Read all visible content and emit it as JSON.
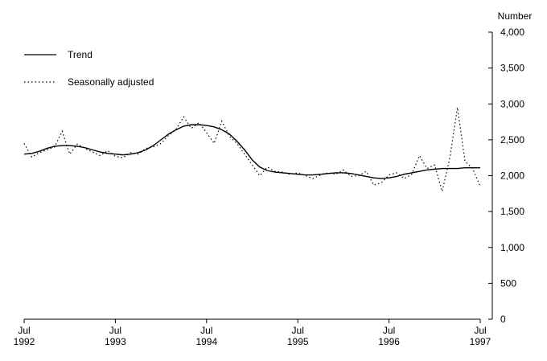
{
  "chart_data": {
    "type": "line",
    "y_axis_label": "Number",
    "x": [
      1992.5,
      1992.5833,
      1992.6667,
      1992.75,
      1992.8333,
      1992.9167,
      1993,
      1993.0833,
      1993.1667,
      1993.25,
      1993.3333,
      1993.4167,
      1993.5,
      1993.5833,
      1993.6667,
      1993.75,
      1993.8333,
      1993.9167,
      1994,
      1994.0833,
      1994.1667,
      1994.25,
      1994.3333,
      1994.4167,
      1994.5,
      1994.5833,
      1994.6667,
      1994.75,
      1994.8333,
      1994.9167,
      1995,
      1995.0833,
      1995.1667,
      1995.25,
      1995.3333,
      1995.4167,
      1995.5,
      1995.5833,
      1995.6667,
      1995.75,
      1995.8333,
      1995.9167,
      1996,
      1996.0833,
      1996.1667,
      1996.25,
      1996.3333,
      1996.4167,
      1996.5,
      1996.5833,
      1996.6667,
      1996.75,
      1996.8333,
      1996.9167,
      1997,
      1997.0833,
      1997.1667,
      1997.25,
      1997.3333,
      1997.4167,
      1997.5
    ],
    "series": [
      {
        "name": "Trend",
        "color": "#000000",
        "dash": "none",
        "values": [
          2300,
          2310,
          2340,
          2380,
          2410,
          2420,
          2420,
          2410,
          2390,
          2360,
          2330,
          2310,
          2300,
          2290,
          2300,
          2320,
          2360,
          2420,
          2500,
          2580,
          2640,
          2690,
          2710,
          2710,
          2700,
          2680,
          2640,
          2580,
          2480,
          2360,
          2220,
          2120,
          2070,
          2050,
          2040,
          2030,
          2020,
          2010,
          2010,
          2020,
          2030,
          2040,
          2040,
          2030,
          2010,
          1990,
          1970,
          1960,
          1970,
          1990,
          2020,
          2040,
          2060,
          2080,
          2090,
          2100,
          2100,
          2100,
          2110,
          2110,
          2110
        ]
      },
      {
        "name": "Seasonally adjusted",
        "color": "#000000",
        "dash": "1.5 3",
        "values": [
          2450,
          2260,
          2320,
          2360,
          2400,
          2620,
          2300,
          2440,
          2380,
          2330,
          2280,
          2350,
          2270,
          2250,
          2320,
          2300,
          2380,
          2400,
          2450,
          2560,
          2650,
          2820,
          2660,
          2740,
          2600,
          2450,
          2760,
          2550,
          2450,
          2300,
          2150,
          2000,
          2120,
          2060,
          2050,
          2020,
          2040,
          2000,
          1960,
          2010,
          2040,
          2020,
          2080,
          1990,
          2000,
          2060,
          1870,
          1900,
          2010,
          2040,
          1960,
          2020,
          2280,
          2100,
          2150,
          1780,
          2250,
          2950,
          2200,
          2100,
          1850
        ]
      }
    ],
    "xlim": [
      1992.5,
      1997.5
    ],
    "xticks": [
      {
        "value": 1992.5,
        "label": "Jul 1992"
      },
      {
        "value": 1993.5,
        "label": "Jul 1993"
      },
      {
        "value": 1994.5,
        "label": "Jul 1994"
      },
      {
        "value": 1995.5,
        "label": "Jul 1995"
      },
      {
        "value": 1996.5,
        "label": "Jul 1996"
      },
      {
        "value": 1997.5,
        "label": "Jul 1997"
      }
    ],
    "ylim": [
      0,
      4000
    ],
    "yticks": [
      0,
      {
        "value": 500,
        "label": "500"
      },
      {
        "value": 1000,
        "label": "1,000"
      },
      {
        "value": 1500,
        "label": "1,500"
      },
      {
        "value": 2000,
        "label": "2,000"
      },
      {
        "value": 2500,
        "label": "2,500"
      },
      {
        "value": 3000,
        "label": "3,000"
      },
      {
        "value": 3500,
        "label": "3,500"
      },
      {
        "value": 4000,
        "label": "4,000"
      }
    ],
    "legend": "top-left"
  }
}
